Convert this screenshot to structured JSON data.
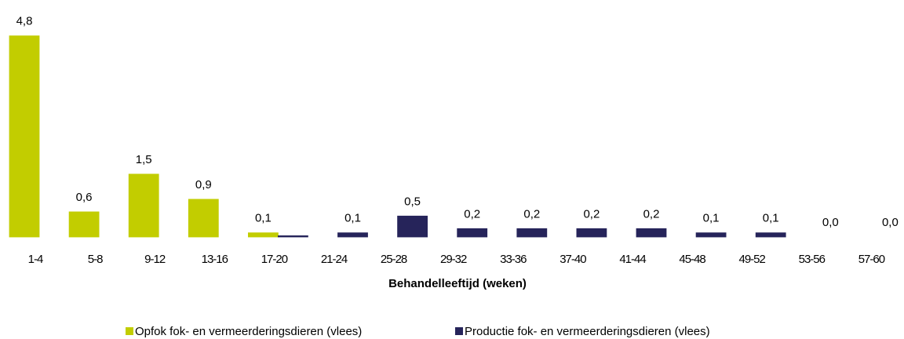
{
  "chart_data": {
    "type": "bar",
    "x_label": "Behandelleeftijd (weken)",
    "categories": [
      "1-4",
      "5-8",
      "9-12",
      "13-16",
      "17-20",
      "21-24",
      "25-28",
      "29-32",
      "33-36",
      "37-40",
      "41-44",
      "45-48",
      "49-52",
      "53-56",
      "57-60"
    ],
    "series": [
      {
        "name": "Opfok fok- en vermeerderingsdieren (vlees)",
        "color": "#c2cd00",
        "values": [
          4.8,
          0.6,
          1.5,
          0.9,
          0.1,
          null,
          null,
          null,
          null,
          null,
          null,
          null,
          null,
          null,
          null
        ],
        "value_labels": [
          "4,8",
          "0,6",
          "1,5",
          "0,9",
          "0,1",
          null,
          null,
          null,
          null,
          null,
          null,
          null,
          null,
          null,
          null
        ]
      },
      {
        "name": "Productie fok- en vermeerderingsdieren (vlees)",
        "color": "#26245a",
        "values": [
          null,
          null,
          null,
          null,
          0.03,
          0.1,
          0.5,
          0.2,
          0.2,
          0.2,
          0.2,
          0.1,
          0.1,
          0.0,
          0.0
        ],
        "value_labels": [
          null,
          null,
          null,
          null,
          null,
          "0,1",
          "0,5",
          "0,2",
          "0,2",
          "0,2",
          "0,2",
          "0,1",
          "0,1",
          "0,0",
          "0,0"
        ]
      }
    ],
    "ylim": [
      0,
      5
    ],
    "legend": "bottom"
  }
}
